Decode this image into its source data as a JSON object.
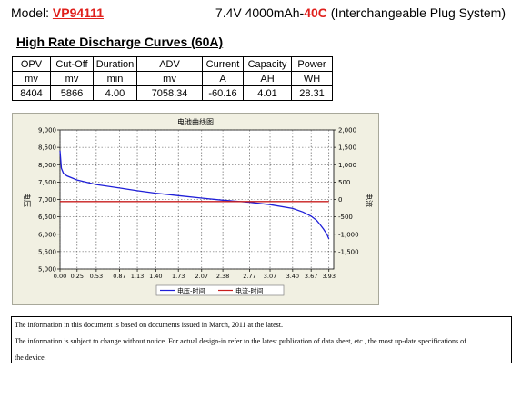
{
  "header": {
    "model_label": "Model: ",
    "model_code": "VP94111",
    "spec_prefix": "7.4V 4000mAh-",
    "spec_rate": "40C",
    "spec_suffix": " (Interchangeable Plug System)"
  },
  "section_title": " High Rate Discharge Curves (60A)",
  "table": {
    "headers": [
      "OPV",
      "Cut-Off",
      "Duration",
      "ADV",
      "Current",
      "Capacity",
      "Power"
    ],
    "units": [
      "mv",
      "mv",
      "min",
      "mv",
      "A",
      "AH",
      "WH"
    ],
    "values": [
      "8404",
      "5866",
      "4.00",
      "7058.34",
      "-60.16",
      "4.01",
      "28.31"
    ]
  },
  "chart_data": {
    "type": "line",
    "title": "电池曲线图",
    "ylabel": "电压",
    "y2label": "电流",
    "ylim": [
      5000,
      9000
    ],
    "y2lim": [
      -2000,
      2000
    ],
    "yticks": [
      "9,000",
      "8,500",
      "8,000",
      "7,500",
      "7,000",
      "6,500",
      "6,000",
      "5,500",
      "5,000"
    ],
    "y2ticks": [
      "2,000",
      "1,500",
      "1,000",
      "500",
      "0",
      "-500",
      "-1,000",
      "-1,500"
    ],
    "xlim": [
      0,
      4.0
    ],
    "xticks": [
      "0.00",
      "0.25",
      "0.53",
      "0.87",
      "1.13",
      "1.40",
      "1.73",
      "2.07",
      "2.38",
      "2.77",
      "3.07",
      "3.40",
      "3.67",
      "3.93"
    ],
    "grid": true,
    "legend_placement": "bottom",
    "series": [
      {
        "name": "电压-时间",
        "color": "#1f1fd8",
        "axis": "left",
        "x": [
          0.0,
          0.02,
          0.05,
          0.1,
          0.25,
          0.53,
          0.87,
          1.13,
          1.4,
          1.73,
          2.07,
          2.38,
          2.77,
          3.07,
          3.4,
          3.55,
          3.67,
          3.75,
          3.8,
          3.85,
          3.9,
          3.93
        ],
        "y": [
          8404,
          7900,
          7750,
          7680,
          7560,
          7430,
          7330,
          7250,
          7180,
          7110,
          7040,
          6980,
          6920,
          6850,
          6740,
          6640,
          6520,
          6400,
          6280,
          6150,
          6000,
          5866
        ]
      },
      {
        "name": "电流-时间",
        "color": "#c81e1e",
        "axis": "right",
        "x": [
          0.0,
          3.93
        ],
        "y": [
          -60.16,
          -60.16
        ]
      }
    ]
  },
  "notes": [
    "The information in this document is based on documents issued in March, 2011 at the latest.",
    "The information is subject to change without notice. For actual design-in refer to the latest publication of data sheet, etc., the most up-date specifications of",
    "the device."
  ]
}
